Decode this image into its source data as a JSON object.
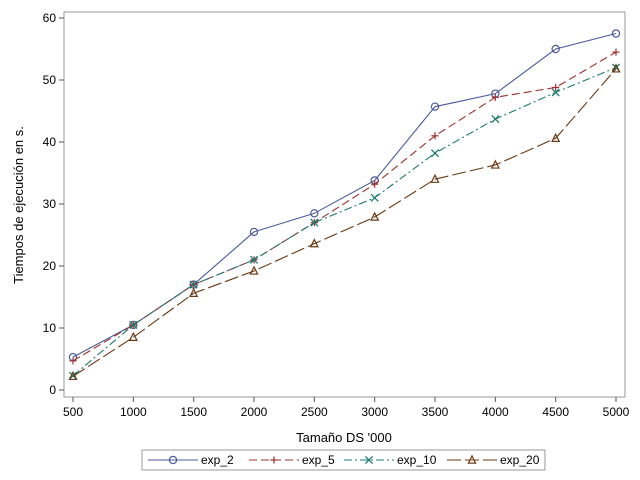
{
  "chart_data": {
    "type": "line",
    "title": "",
    "xlabel": "Tamaño DS '000",
    "ylabel": "Tiempos de ejecución en s.",
    "x": [
      500,
      1000,
      1500,
      2000,
      2500,
      3000,
      3500,
      4000,
      4500,
      5000
    ],
    "xlim": [
      500,
      5000
    ],
    "ylim": [
      0,
      60
    ],
    "xticks": [
      "500",
      "1000",
      "1500",
      "2000",
      "2500",
      "3000",
      "3500",
      "4000",
      "4500",
      "5000"
    ],
    "yticks": [
      "0",
      "10",
      "20",
      "30",
      "40",
      "50",
      "60"
    ],
    "grid": false,
    "legend": "bottom",
    "series": [
      {
        "name": "exp_2",
        "color": "#4b5a9b",
        "marker": "circle",
        "dash": "solid",
        "values": [
          5.3,
          10.5,
          17.0,
          25.5,
          28.5,
          33.8,
          45.7,
          47.8,
          55.0,
          57.5
        ]
      },
      {
        "name": "exp_5",
        "color": "#a03030",
        "marker": "plus",
        "dash": "dashed",
        "values": [
          4.7,
          10.5,
          17.0,
          21.0,
          27.0,
          33.2,
          41.0,
          47.2,
          48.8,
          54.5
        ]
      },
      {
        "name": "exp_10",
        "color": "#1f7a6e",
        "marker": "x",
        "dash": "dashdot",
        "values": [
          2.3,
          10.5,
          17.0,
          21.0,
          27.0,
          31.0,
          38.2,
          43.7,
          48.0,
          52.0
        ]
      },
      {
        "name": "exp_20",
        "color": "#6b3a12",
        "marker": "triangle",
        "dash": "longdash",
        "values": [
          2.2,
          8.5,
          15.6,
          19.2,
          23.6,
          27.9,
          34.0,
          36.3,
          40.6,
          51.8
        ]
      }
    ]
  }
}
